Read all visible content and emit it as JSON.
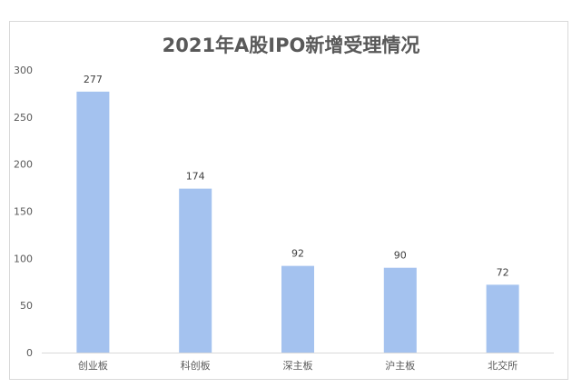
{
  "chart_data": {
    "type": "bar",
    "title": "2021年A股IPO新增受理情况",
    "categories": [
      "创业板",
      "科创板",
      "深主板",
      "沪主板",
      "北交所"
    ],
    "values": [
      277,
      174,
      92,
      90,
      72
    ],
    "ylim": [
      0,
      300
    ],
    "yticks": [
      0,
      50,
      100,
      150,
      200,
      250,
      300
    ],
    "bar_color": "#a4c2ef",
    "grid": false,
    "legend": "none"
  }
}
